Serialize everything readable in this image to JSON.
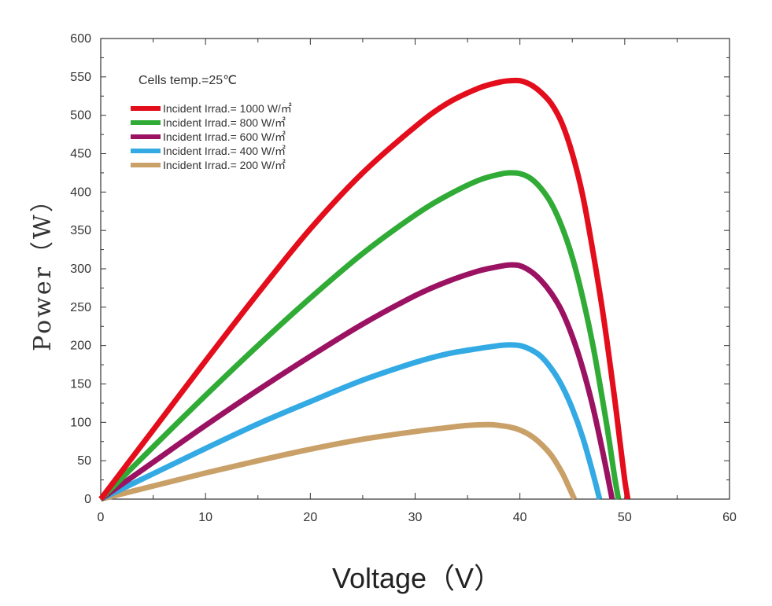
{
  "chart_data": {
    "type": "line",
    "title": "",
    "xlabel": "Voltage（V）",
    "ylabel": "Power（W）",
    "xlim": [
      0,
      60
    ],
    "ylim": [
      0,
      600
    ],
    "xticks": [
      0,
      10,
      20,
      30,
      40,
      50,
      60
    ],
    "yticks": [
      0,
      50,
      100,
      150,
      200,
      250,
      300,
      350,
      400,
      450,
      500,
      550,
      600
    ],
    "grid": false,
    "legend_position": "top-left",
    "annotation": "Cells temp.=25℃",
    "series": [
      {
        "name": "Incident Irrad.= 1000 W/㎡",
        "color": "#e30d1b",
        "x": [
          0,
          5,
          10,
          15,
          20,
          25,
          30,
          33,
          36,
          38,
          39,
          40,
          41,
          42,
          43,
          44,
          45,
          46,
          47,
          48,
          49,
          49.5,
          50,
          50.3
        ],
        "y": [
          0,
          90,
          180,
          268,
          352,
          425,
          485,
          515,
          535,
          543,
          545,
          545,
          540,
          530,
          515,
          490,
          450,
          395,
          320,
          235,
          135,
          80,
          25,
          0
        ]
      },
      {
        "name": "Incident Irrad.= 800 W/㎡",
        "color": "#2fab36",
        "x": [
          0,
          5,
          10,
          15,
          20,
          25,
          30,
          33,
          36,
          38,
          39,
          40,
          41,
          42,
          43,
          44,
          45,
          46,
          47,
          48,
          48.5,
          49,
          49.4
        ],
        "y": [
          0,
          68,
          135,
          200,
          262,
          320,
          370,
          395,
          415,
          423,
          425,
          424,
          418,
          405,
          385,
          355,
          315,
          262,
          198,
          120,
          78,
          32,
          0
        ]
      },
      {
        "name": "Incident Irrad.= 600 W/㎡",
        "color": "#9b1262",
        "x": [
          0,
          5,
          10,
          15,
          20,
          25,
          30,
          33,
          36,
          38,
          39,
          40,
          41,
          42,
          43,
          44,
          45,
          46,
          47,
          48,
          48.8
        ],
        "y": [
          0,
          48,
          96,
          142,
          186,
          228,
          265,
          283,
          297,
          303,
          305,
          304,
          297,
          285,
          268,
          245,
          212,
          170,
          118,
          55,
          0
        ]
      },
      {
        "name": "Incident Irrad.= 400 W/㎡",
        "color": "#33aae3",
        "x": [
          0,
          5,
          10,
          15,
          20,
          25,
          30,
          33,
          36,
          38,
          39,
          40,
          41,
          42,
          43,
          44,
          45,
          46,
          47,
          47.6
        ],
        "y": [
          0,
          33,
          66,
          98,
          127,
          155,
          178,
          189,
          196,
          200,
          201,
          200,
          195,
          186,
          170,
          148,
          118,
          80,
          32,
          0
        ]
      },
      {
        "name": "Incident Irrad.= 200 W/㎡",
        "color": "#c9a068",
        "x": [
          0,
          5,
          10,
          15,
          20,
          25,
          30,
          33,
          35,
          37,
          38,
          39,
          40,
          41,
          42,
          43,
          44,
          44.6,
          45.2
        ],
        "y": [
          0,
          17,
          34,
          50,
          65,
          78,
          88,
          93,
          96,
          97,
          96,
          94,
          90,
          83,
          72,
          57,
          35,
          18,
          0
        ]
      }
    ]
  }
}
